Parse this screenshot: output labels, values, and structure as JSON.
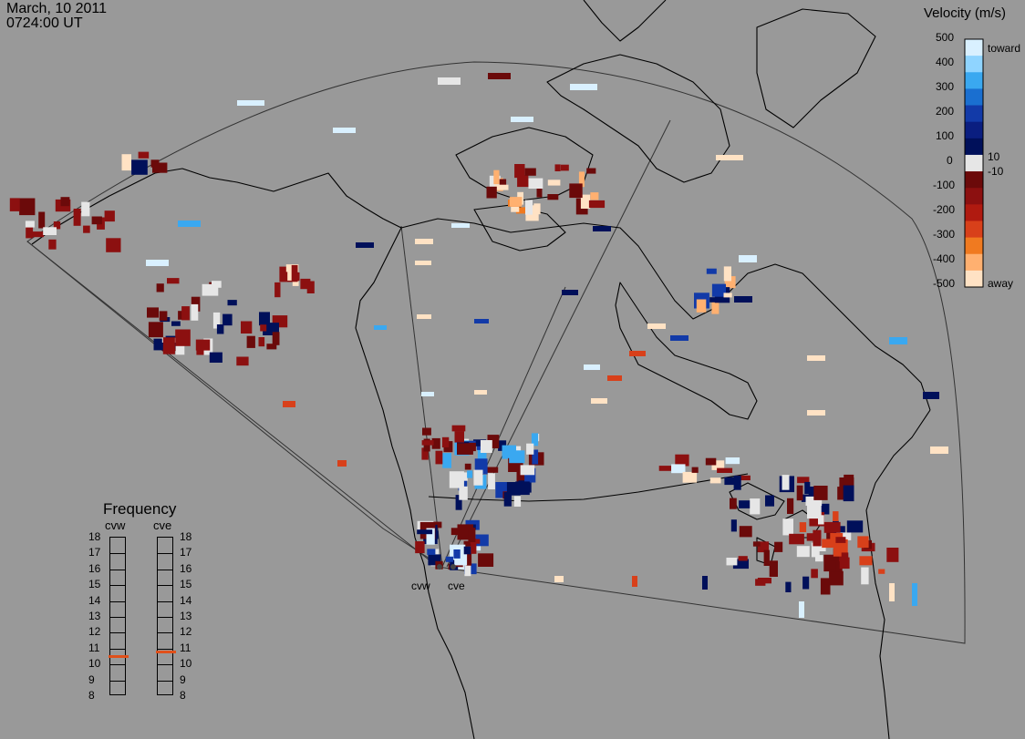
{
  "header": {
    "date": "March, 10 2011",
    "time": "0724:00 UT"
  },
  "colorbar": {
    "title": "Velocity (m/s)",
    "ticks": [
      "500",
      "400",
      "300",
      "200",
      "100",
      "10",
      "0",
      "-10",
      "-100",
      "-200",
      "-300",
      "-400",
      "-500"
    ],
    "toward_label": "toward",
    "away_label": "away",
    "colors": [
      "#d9f0ff",
      "#8fd4ff",
      "#3aa8f0",
      "#1a6fd0",
      "#123aa8",
      "#0a1e80",
      "#00105a",
      "#e6e6e6",
      "#6b0a0a",
      "#8c1010",
      "#b01a10",
      "#d8401a",
      "#f07a20",
      "#ffb070",
      "#ffe2c4"
    ]
  },
  "frequency": {
    "title": "Frequency",
    "left_label": "cvw",
    "right_label": "cve",
    "ticks": [
      "18",
      "17",
      "16",
      "15",
      "14",
      "13",
      "12",
      "11",
      "10",
      "9",
      "8"
    ],
    "cvw_value": 10.5,
    "cve_value": 10.8
  },
  "radars": {
    "west": "cvw",
    "east": "cve"
  }
}
